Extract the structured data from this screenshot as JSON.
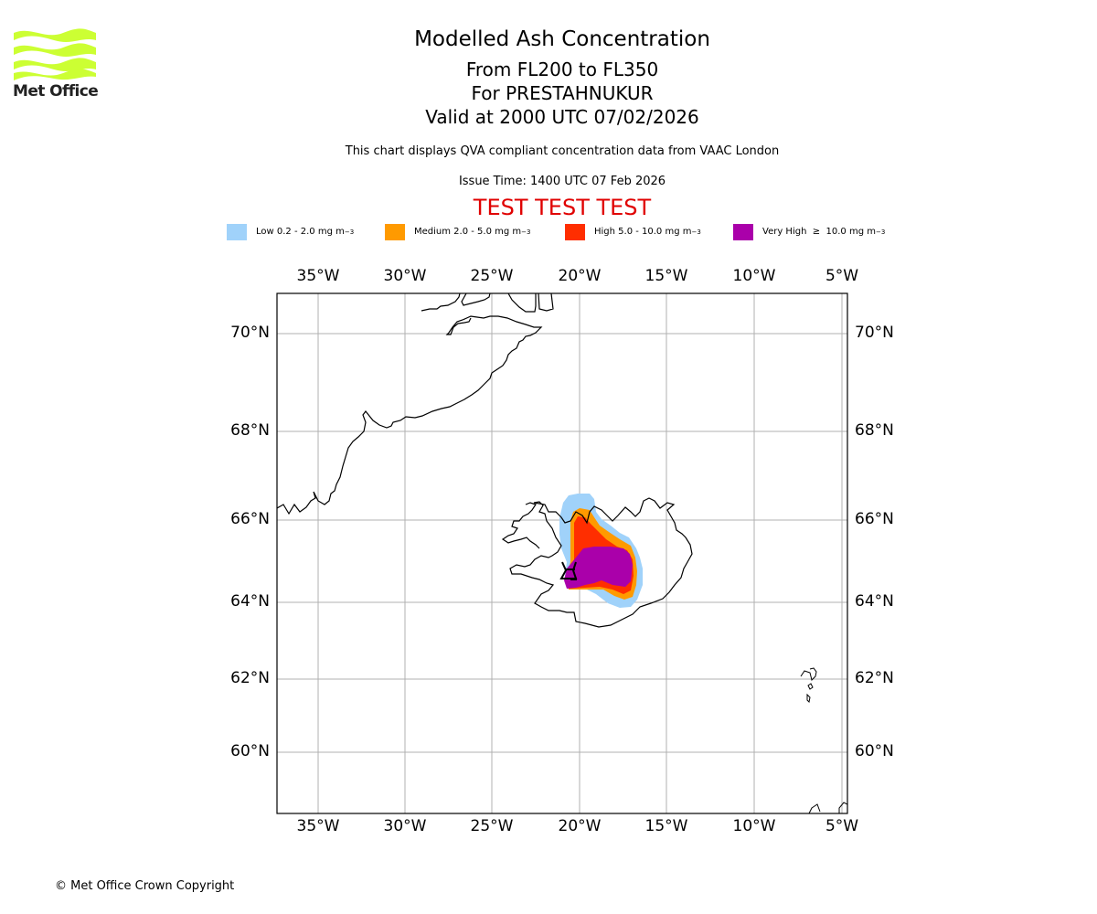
{
  "header": {
    "title": "Modelled Ash Concentration",
    "levels": "From FL200 to FL350",
    "volcano": "For PRESTAHNUKUR",
    "valid": "Valid at 2000 UTC 07/02/2026",
    "description": "This chart displays QVA compliant concentration data from VAAC London",
    "issue_time": "Issue Time: 1400 UTC 07 Feb 2026",
    "test_banner": "TEST TEST TEST"
  },
  "logo": {
    "text": "Met Office",
    "color": "#ccff33"
  },
  "legend": [
    {
      "label": "Low 0.2 - 2.0 mg m",
      "exp": "−3",
      "color": "#a0d2fa"
    },
    {
      "label": "Medium 2.0 - 5.0 mg m",
      "exp": "−3",
      "color": "#ff9a00"
    },
    {
      "label": "High 5.0 - 10.0 mg m",
      "exp": "−3",
      "color": "#ff2e00"
    },
    {
      "label": "Very High  ≥  10.0 mg m",
      "exp": "−3",
      "color": "#aa00aa"
    }
  ],
  "map": {
    "lon_ticks": [
      "35°W",
      "30°W",
      "25°W",
      "20°W",
      "15°W",
      "10°W",
      "5°W"
    ],
    "lat_ticks": [
      "70°N",
      "68°N",
      "66°N",
      "64°N",
      "62°N",
      "60°N"
    ],
    "lon_range": [
      -37.3,
      -4.6
    ],
    "lat_range": [
      58.7,
      70.9
    ],
    "volcano_marker": "volcano-icon",
    "gridline_color": "#b0b0b0"
  },
  "footer": {
    "copyright": "© Met Office Crown Copyright"
  }
}
